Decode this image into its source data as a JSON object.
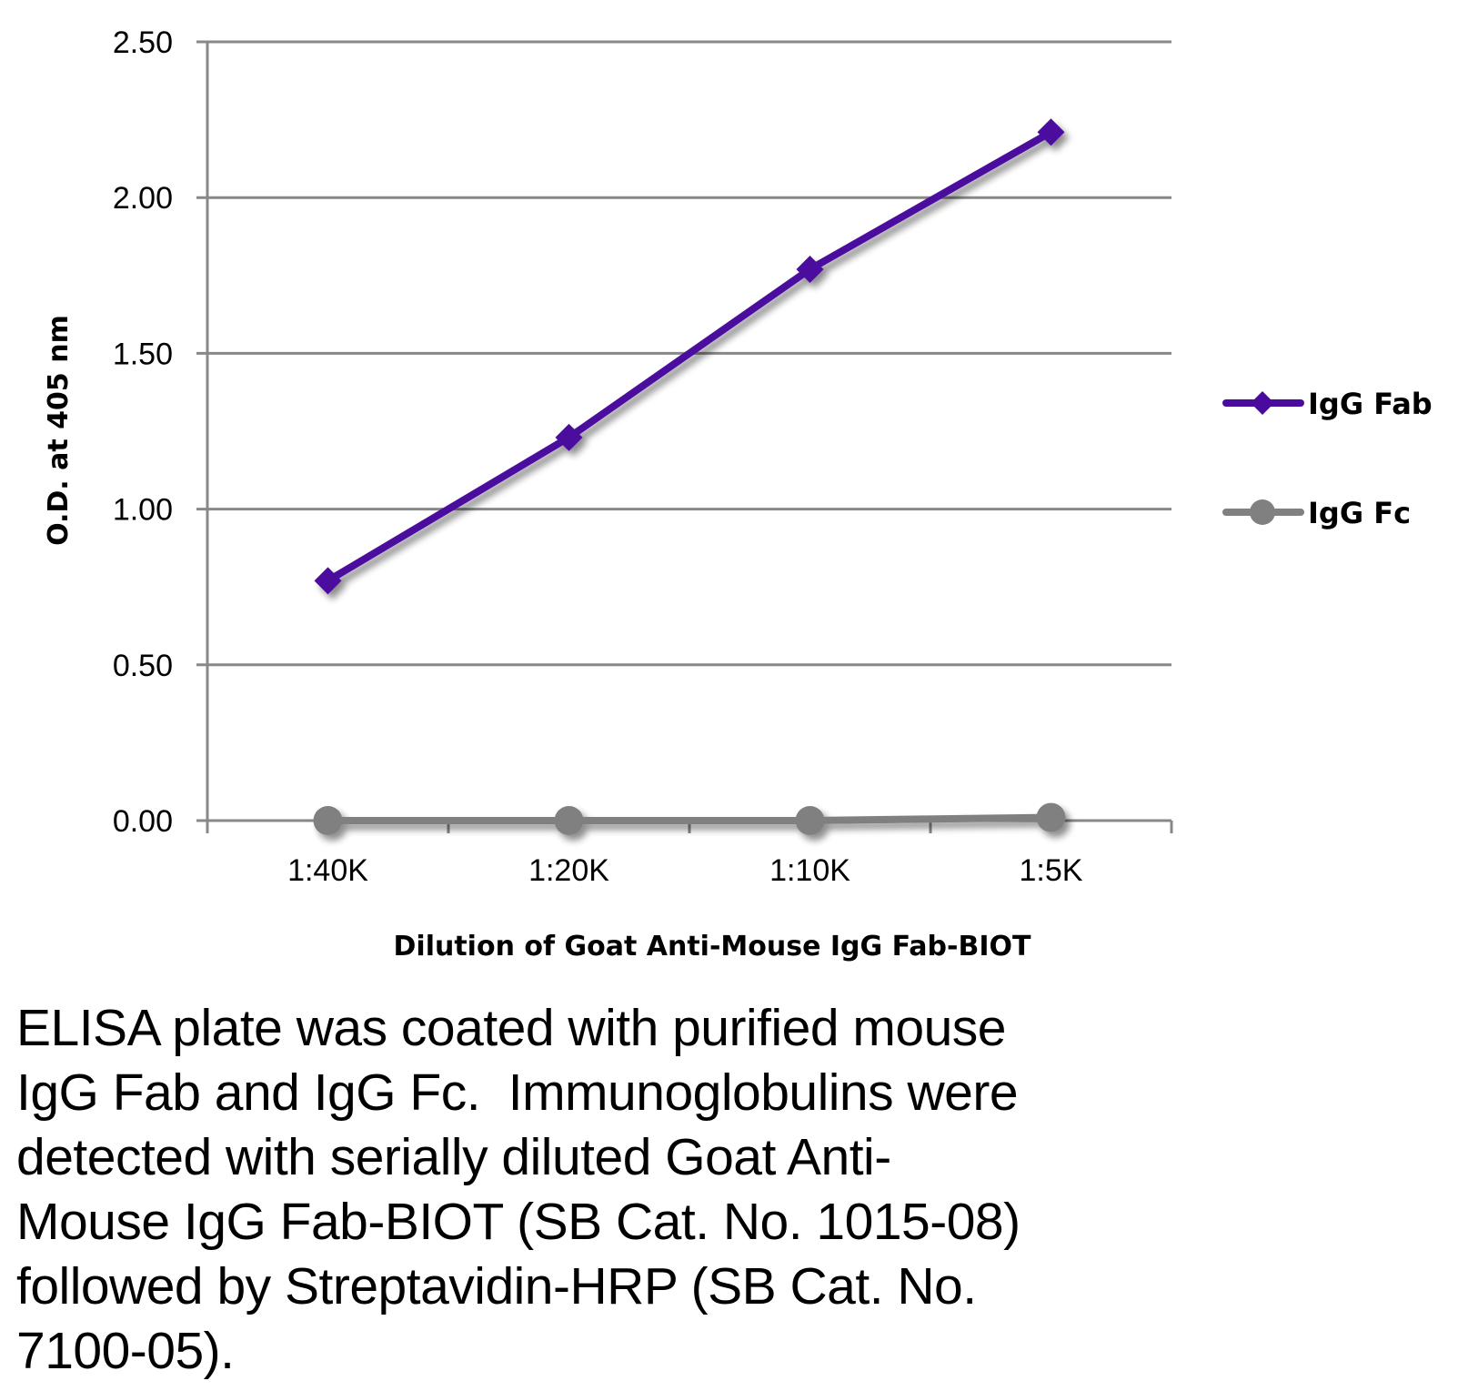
{
  "chart_data": {
    "type": "line",
    "title": "",
    "xlabel": "Dilution of Goat Anti-Mouse IgG Fab-BIOT",
    "ylabel": "O.D. at 405 nm",
    "categories": [
      "1:40K",
      "1:20K",
      "1:10K",
      "1:5K"
    ],
    "ylim": [
      0,
      2.5
    ],
    "yticks": [
      "0.00",
      "0.50",
      "1.00",
      "1.50",
      "2.00",
      "2.50"
    ],
    "ytick_values": [
      0,
      0.5,
      1.0,
      1.5,
      2.0,
      2.5
    ],
    "grid": true,
    "legend_position": "right",
    "series": [
      {
        "name": "IgG Fab",
        "values": [
          0.77,
          1.23,
          1.77,
          2.21
        ],
        "color": "#4B0A9E",
        "marker": "diamond"
      },
      {
        "name": "IgG Fc",
        "values": [
          0.0,
          0.0,
          0.0,
          0.01
        ],
        "color": "#808080",
        "marker": "circle"
      }
    ]
  },
  "caption": {
    "lines": [
      "ELISA plate was coated with purified mouse",
      "IgG Fab and IgG Fc.  Immunoglobulins were",
      "detected with serially diluted Goat Anti-",
      "Mouse IgG Fab-BIOT (SB Cat. No. 1015-08)",
      "followed by Streptavidin-HRP (SB Cat. No.",
      "7100-05)."
    ]
  },
  "colors": {
    "gridline": "#888888",
    "axis": "#888888"
  }
}
